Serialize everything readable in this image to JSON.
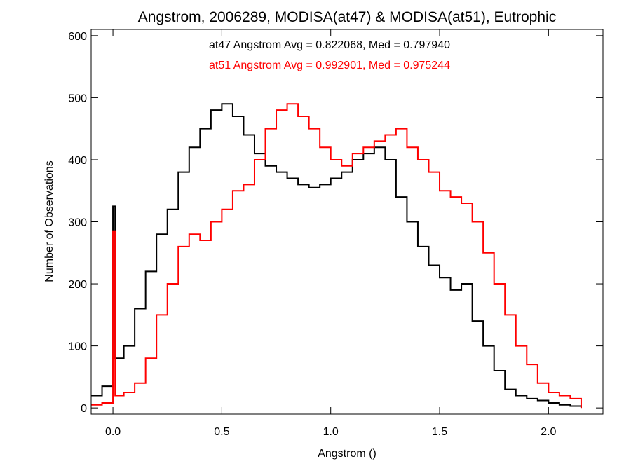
{
  "chart_data": {
    "type": "line",
    "style": "step-histogram",
    "title": "Angstrom, 2006289, MODISA(at47) & MODISA(at51), Eutrophic",
    "xlabel": "Angstrom ()",
    "ylabel": "Number of Observations",
    "xlim": [
      -0.1,
      2.25
    ],
    "ylim": [
      -10,
      610
    ],
    "xticks": [
      0.0,
      0.5,
      1.0,
      1.5,
      2.0
    ],
    "xtick_labels": [
      "0.0",
      "0.5",
      "1.0",
      "1.5",
      "2.0"
    ],
    "yticks": [
      0,
      100,
      200,
      300,
      400,
      500,
      600
    ],
    "ytick_labels": [
      "0",
      "100",
      "200",
      "300",
      "400",
      "500",
      "600"
    ],
    "grid": false,
    "annotations": [
      {
        "text": "at47 Angstrom Avg = 0.822068, Med = 0.797940",
        "color": "#000000"
      },
      {
        "text": "at51 Angstrom Avg = 0.992901, Med = 0.975244",
        "color": "#ff0000"
      }
    ],
    "series": [
      {
        "color": "#000000",
        "x": [
          -0.1,
          -0.05,
          0.0,
          0.0,
          0.01,
          0.05,
          0.1,
          0.15,
          0.2,
          0.25,
          0.3,
          0.35,
          0.4,
          0.45,
          0.5,
          0.55,
          0.6,
          0.65,
          0.7,
          0.75,
          0.8,
          0.85,
          0.9,
          0.95,
          1.0,
          1.05,
          1.1,
          1.15,
          1.2,
          1.25,
          1.3,
          1.35,
          1.4,
          1.45,
          1.5,
          1.55,
          1.6,
          1.65,
          1.7,
          1.75,
          1.8,
          1.85,
          1.9,
          1.95,
          2.0,
          2.05,
          2.1,
          2.15
        ],
        "y": [
          20,
          35,
          60,
          325,
          80,
          100,
          160,
          220,
          280,
          320,
          380,
          420,
          450,
          480,
          490,
          470,
          440,
          410,
          390,
          380,
          370,
          360,
          355,
          360,
          370,
          380,
          400,
          410,
          420,
          400,
          340,
          300,
          260,
          230,
          210,
          190,
          200,
          140,
          100,
          60,
          30,
          20,
          15,
          12,
          8,
          5,
          3,
          0
        ]
      },
      {
        "color": "#ff0000",
        "x": [
          -0.1,
          -0.05,
          0.0,
          0.0,
          0.01,
          0.05,
          0.1,
          0.15,
          0.2,
          0.25,
          0.3,
          0.35,
          0.4,
          0.45,
          0.5,
          0.55,
          0.6,
          0.65,
          0.7,
          0.75,
          0.8,
          0.85,
          0.9,
          0.95,
          1.0,
          1.05,
          1.1,
          1.15,
          1.2,
          1.25,
          1.3,
          1.35,
          1.4,
          1.45,
          1.5,
          1.55,
          1.6,
          1.65,
          1.7,
          1.75,
          1.8,
          1.85,
          1.9,
          1.95,
          2.0,
          2.05,
          2.1,
          2.15
        ],
        "y": [
          5,
          8,
          10,
          285,
          20,
          25,
          40,
          80,
          150,
          200,
          260,
          280,
          270,
          300,
          320,
          350,
          360,
          400,
          450,
          480,
          490,
          470,
          450,
          420,
          400,
          390,
          410,
          420,
          430,
          440,
          450,
          420,
          400,
          380,
          350,
          340,
          330,
          300,
          250,
          200,
          150,
          100,
          70,
          40,
          25,
          20,
          15,
          0
        ]
      }
    ]
  }
}
